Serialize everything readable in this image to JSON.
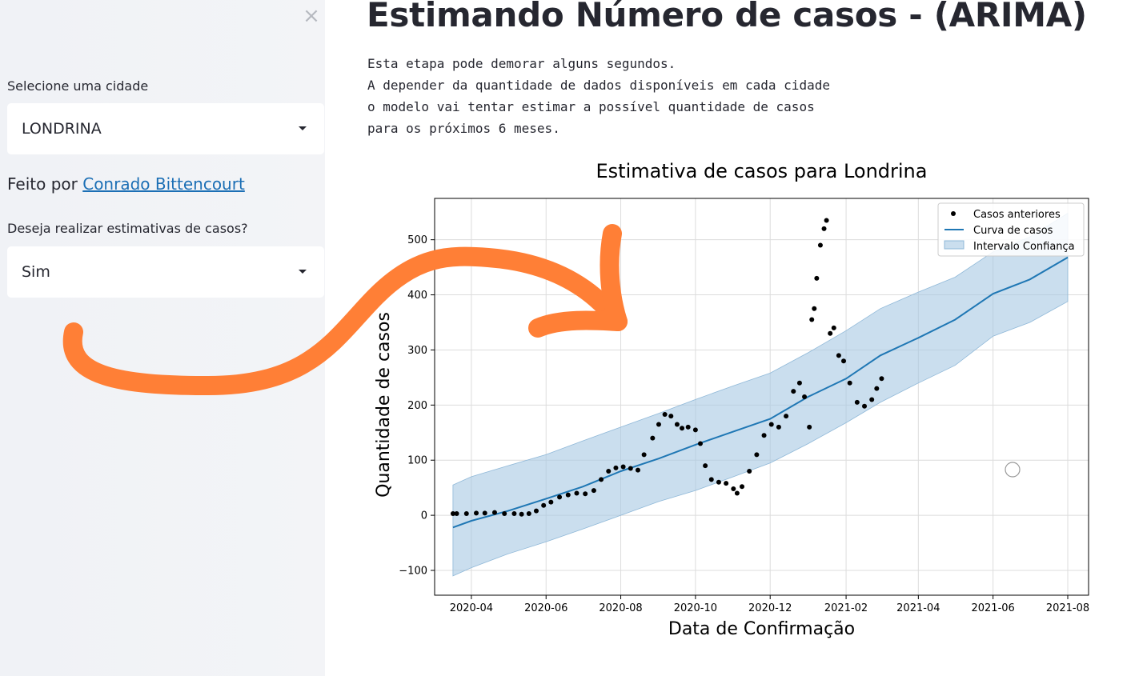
{
  "sidebar": {
    "close_icon": "×",
    "city_label": "Selecione uma cidade",
    "city_value": "LONDRINA",
    "credits_prefix": "Feito por",
    "credits_link": "Conrado Bittencourt",
    "estimate_label": "Deseja realizar estimativas de casos?",
    "estimate_value": "Sim"
  },
  "main": {
    "title": "Estimando Número de casos - (ARIMA)",
    "description": "Esta etapa pode demorar alguns segundos.\nA depender da quantidade de dados disponíveis em cada cidade\no modelo vai tentar estimar a possível quantidade de casos\npara os próximos 6 meses."
  },
  "annotation": {
    "arrow_color": "#ff7f36"
  },
  "chart_data": {
    "type": "line",
    "title": "Estimativa de casos para Londrina",
    "xlabel": "Data de Confirmação",
    "ylabel": "Quantidade de casos",
    "xticks": [
      "2020-04",
      "2020-06",
      "2020-08",
      "2020-10",
      "2020-12",
      "2021-02",
      "2021-04",
      "2021-06",
      "2021-08"
    ],
    "yticks": [
      -100,
      0,
      100,
      200,
      300,
      400,
      500
    ],
    "ylim": [
      -145,
      575
    ],
    "xlim": [
      "2020-03-02",
      "2021-08-18"
    ],
    "grid": true,
    "legend_position": "top-right",
    "legend": [
      "Casos anteriores",
      "Curva de casos",
      "Intervalo Confiança"
    ],
    "colors": {
      "points": "#000000",
      "line": "#1f77b4",
      "band": "#a6c8e3"
    },
    "series": [
      {
        "name": "Casos anteriores",
        "kind": "scatter",
        "points": [
          [
            "2020-03-17",
            3
          ],
          [
            "2020-03-20",
            3
          ],
          [
            "2020-03-28",
            3
          ],
          [
            "2020-04-05",
            4
          ],
          [
            "2020-04-12",
            4
          ],
          [
            "2020-04-20",
            5
          ],
          [
            "2020-04-28",
            3
          ],
          [
            "2020-05-06",
            3
          ],
          [
            "2020-05-12",
            2
          ],
          [
            "2020-05-18",
            3
          ],
          [
            "2020-05-24",
            8
          ],
          [
            "2020-05-30",
            18
          ],
          [
            "2020-06-05",
            24
          ],
          [
            "2020-06-12",
            33
          ],
          [
            "2020-06-19",
            37
          ],
          [
            "2020-06-26",
            40
          ],
          [
            "2020-07-03",
            39
          ],
          [
            "2020-07-10",
            45
          ],
          [
            "2020-07-16",
            65
          ],
          [
            "2020-07-22",
            80
          ],
          [
            "2020-07-28",
            86
          ],
          [
            "2020-08-03",
            88
          ],
          [
            "2020-08-09",
            85
          ],
          [
            "2020-08-15",
            82
          ],
          [
            "2020-08-20",
            110
          ],
          [
            "2020-08-27",
            140
          ],
          [
            "2020-09-01",
            165
          ],
          [
            "2020-09-06",
            183
          ],
          [
            "2020-09-11",
            180
          ],
          [
            "2020-09-16",
            165
          ],
          [
            "2020-09-20",
            158
          ],
          [
            "2020-09-25",
            160
          ],
          [
            "2020-10-01",
            155
          ],
          [
            "2020-10-05",
            130
          ],
          [
            "2020-10-09",
            90
          ],
          [
            "2020-10-14",
            65
          ],
          [
            "2020-10-20",
            60
          ],
          [
            "2020-10-26",
            58
          ],
          [
            "2020-11-01",
            48
          ],
          [
            "2020-11-04",
            40
          ],
          [
            "2020-11-08",
            52
          ],
          [
            "2020-11-14",
            80
          ],
          [
            "2020-11-20",
            110
          ],
          [
            "2020-11-26",
            145
          ],
          [
            "2020-12-02",
            165
          ],
          [
            "2020-12-08",
            160
          ],
          [
            "2020-12-14",
            180
          ],
          [
            "2020-12-20",
            225
          ],
          [
            "2020-12-25",
            240
          ],
          [
            "2020-12-29",
            215
          ],
          [
            "2021-01-02",
            160
          ],
          [
            "2021-01-04",
            355
          ],
          [
            "2021-01-06",
            375
          ],
          [
            "2021-01-08",
            430
          ],
          [
            "2021-01-11",
            490
          ],
          [
            "2021-01-14",
            520
          ],
          [
            "2021-01-16",
            535
          ],
          [
            "2021-01-19",
            330
          ],
          [
            "2021-01-22",
            340
          ],
          [
            "2021-01-26",
            290
          ],
          [
            "2021-01-30",
            280
          ],
          [
            "2021-02-04",
            240
          ],
          [
            "2021-02-10",
            205
          ],
          [
            "2021-02-16",
            198
          ],
          [
            "2021-02-22",
            210
          ],
          [
            "2021-02-26",
            230
          ],
          [
            "2021-03-02",
            248
          ]
        ]
      },
      {
        "name": "Curva de casos",
        "kind": "line",
        "points": [
          [
            "2020-03-17",
            -22
          ],
          [
            "2020-04-01",
            -10
          ],
          [
            "2020-05-01",
            8
          ],
          [
            "2020-06-01",
            30
          ],
          [
            "2020-07-01",
            52
          ],
          [
            "2020-08-01",
            80
          ],
          [
            "2020-09-01",
            103
          ],
          [
            "2020-10-01",
            128
          ],
          [
            "2020-11-01",
            152
          ],
          [
            "2020-12-01",
            175
          ],
          [
            "2021-01-01",
            215
          ],
          [
            "2021-02-01",
            248
          ],
          [
            "2021-03-01",
            290
          ],
          [
            "2021-04-01",
            322
          ],
          [
            "2021-05-01",
            355
          ],
          [
            "2021-06-01",
            402
          ],
          [
            "2021-07-01",
            428
          ],
          [
            "2021-08-01",
            468
          ]
        ]
      },
      {
        "name": "Intervalo Confiança",
        "kind": "band",
        "points": [
          [
            "2020-03-17",
            -110,
            55
          ],
          [
            "2020-04-01",
            -95,
            70
          ],
          [
            "2020-05-01",
            -70,
            90
          ],
          [
            "2020-06-01",
            -48,
            110
          ],
          [
            "2020-07-01",
            -25,
            135
          ],
          [
            "2020-08-01",
            0,
            160
          ],
          [
            "2020-09-01",
            25,
            185
          ],
          [
            "2020-10-01",
            45,
            210
          ],
          [
            "2020-11-01",
            70,
            235
          ],
          [
            "2020-12-01",
            95,
            258
          ],
          [
            "2021-01-01",
            130,
            295
          ],
          [
            "2021-02-01",
            168,
            335
          ],
          [
            "2021-03-01",
            205,
            375
          ],
          [
            "2021-04-01",
            240,
            405
          ],
          [
            "2021-05-01",
            272,
            432
          ],
          [
            "2021-06-01",
            325,
            478
          ],
          [
            "2021-07-01",
            350,
            505
          ],
          [
            "2021-08-01",
            388,
            548
          ]
        ]
      }
    ]
  }
}
